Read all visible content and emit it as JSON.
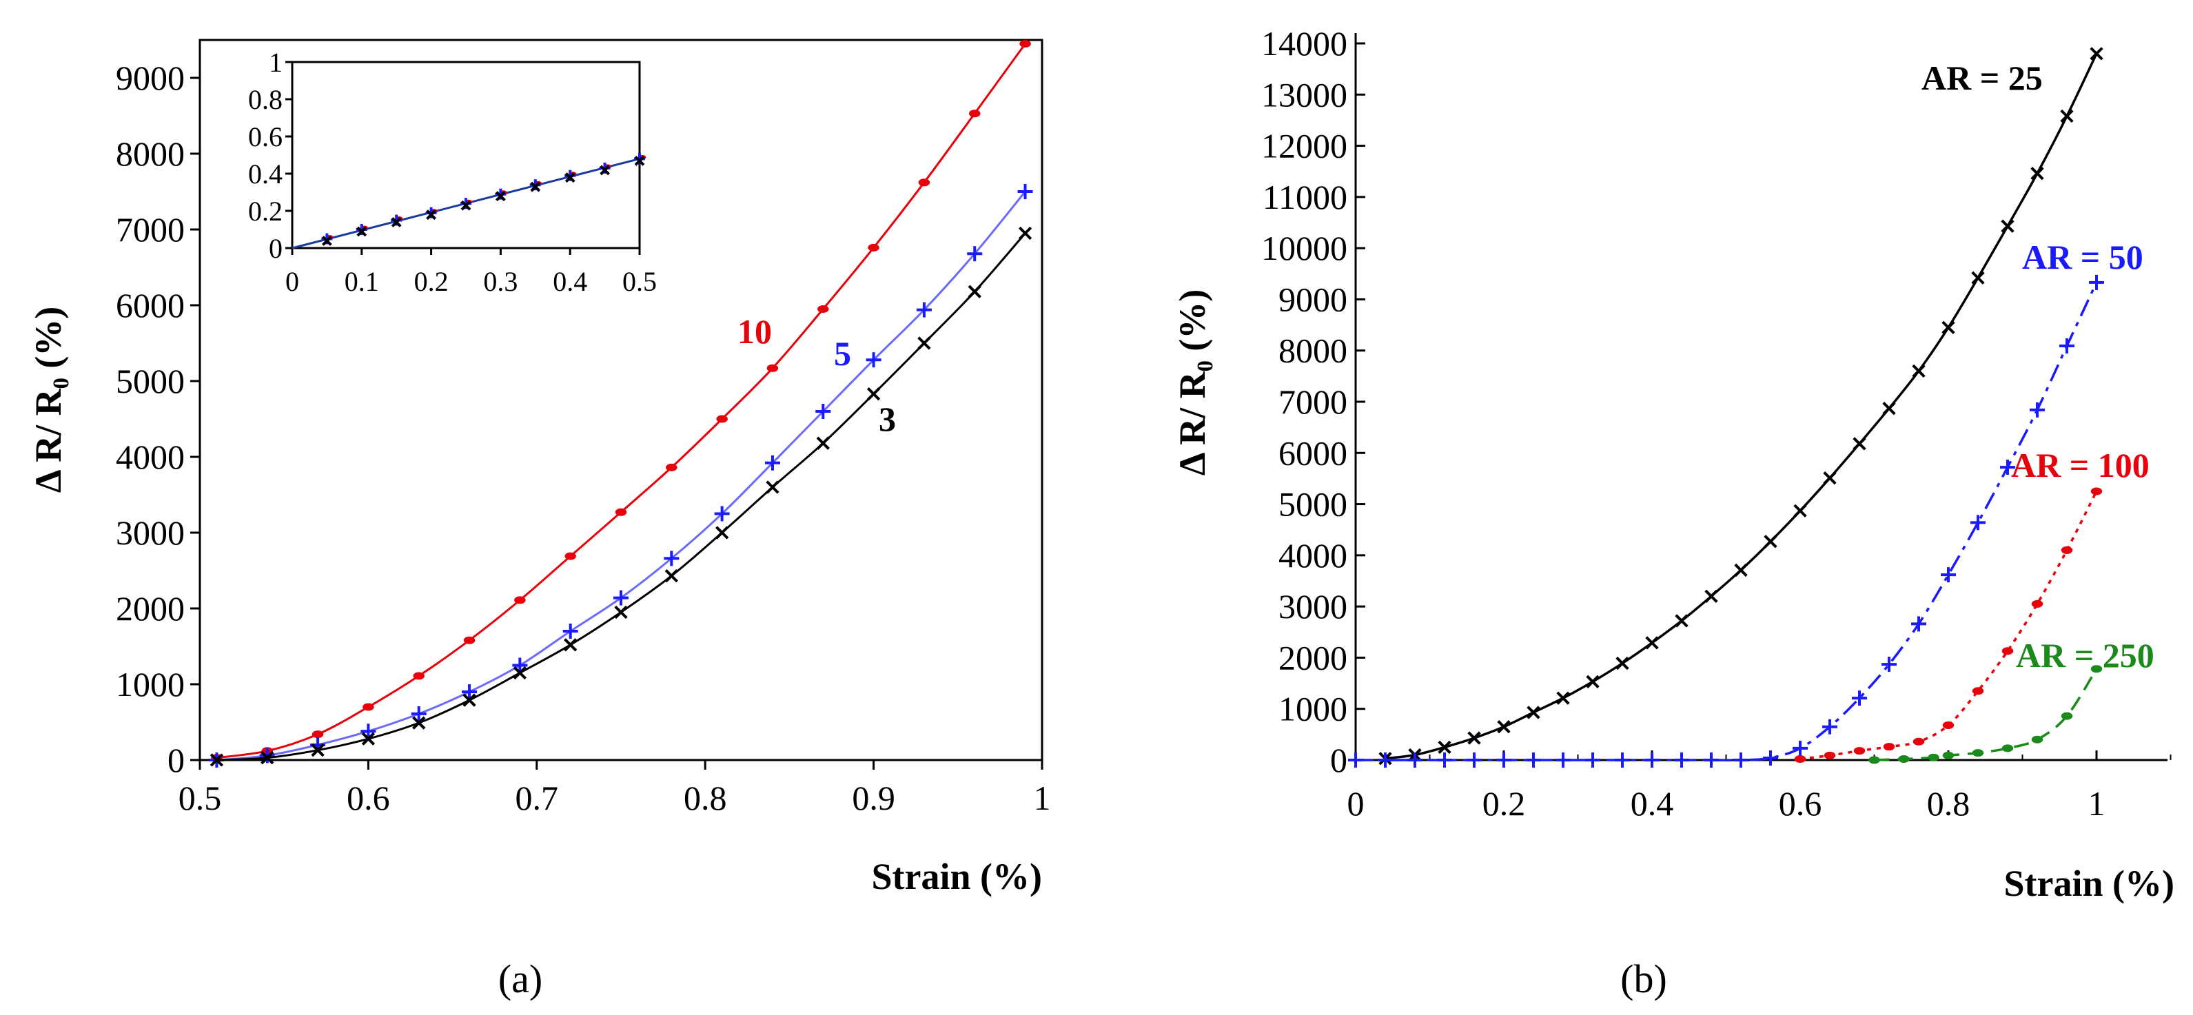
{
  "chart_data": [
    {
      "type": "line",
      "panel": "(a)",
      "xlabel": "Strain (%)",
      "ylabel": "Δ R/ R₀ (%)",
      "xlim": [
        0.5,
        1.0
      ],
      "ylim": [
        0,
        9500
      ],
      "xticks": [
        "0.5",
        "0.6",
        "0.7",
        "0.8",
        "0.9",
        "1"
      ],
      "yticks": [
        "0",
        "1000",
        "2000",
        "3000",
        "4000",
        "5000",
        "6000",
        "7000",
        "8000",
        "9000"
      ],
      "series": [
        {
          "name": "10",
          "color": "#e8000b",
          "marker": "dot",
          "x": [
            0.51,
            0.54,
            0.57,
            0.6,
            0.63,
            0.66,
            0.69,
            0.72,
            0.75,
            0.78,
            0.81,
            0.84,
            0.87,
            0.9,
            0.93,
            0.96,
            0.99
          ],
          "y": [
            30,
            120,
            340,
            700,
            1110,
            1580,
            2110,
            2690,
            3270,
            3860,
            4500,
            5170,
            5950,
            6760,
            7620,
            8530,
            9450
          ]
        },
        {
          "name": "5",
          "color": "#1a1aff",
          "marker": "plus",
          "x": [
            0.51,
            0.54,
            0.57,
            0.6,
            0.63,
            0.66,
            0.69,
            0.72,
            0.75,
            0.78,
            0.81,
            0.84,
            0.87,
            0.9,
            0.93,
            0.96,
            0.99
          ],
          "y": [
            0,
            60,
            200,
            380,
            610,
            900,
            1250,
            1700,
            2140,
            2660,
            3250,
            3920,
            4600,
            5280,
            5940,
            6680,
            7500
          ]
        },
        {
          "name": "3",
          "color": "#000000",
          "marker": "cross",
          "x": [
            0.51,
            0.54,
            0.57,
            0.6,
            0.63,
            0.66,
            0.69,
            0.72,
            0.75,
            0.78,
            0.81,
            0.84,
            0.87,
            0.9,
            0.93,
            0.96,
            0.99
          ],
          "y": [
            0,
            30,
            130,
            280,
            490,
            790,
            1150,
            1520,
            1950,
            2430,
            3000,
            3600,
            4180,
            4830,
            5500,
            6180,
            6950
          ]
        }
      ],
      "inset": {
        "xlim": [
          0,
          0.5
        ],
        "ylim": [
          0,
          1
        ],
        "xticks": [
          "0",
          "0.1",
          "0.2",
          "0.3",
          "0.4",
          "0.5"
        ],
        "yticks": [
          "0",
          "0.2",
          "0.4",
          "0.6",
          "0.8",
          "1"
        ],
        "x": [
          0.05,
          0.1,
          0.15,
          0.2,
          0.25,
          0.3,
          0.35,
          0.4,
          0.45,
          0.5
        ],
        "y": [
          0.05,
          0.1,
          0.15,
          0.19,
          0.24,
          0.29,
          0.34,
          0.39,
          0.43,
          0.48
        ]
      }
    },
    {
      "type": "line",
      "panel": "(b)",
      "xlabel": "Strain (%)",
      "ylabel": "Δ R/ R₀ (%)",
      "xlim": [
        0,
        1.1
      ],
      "ylim": [
        0,
        14000
      ],
      "xticks": [
        "0",
        "0.2",
        "0.4",
        "0.6",
        "0.8",
        "1"
      ],
      "yticks": [
        "0",
        "1000",
        "2000",
        "3000",
        "4000",
        "5000",
        "6000",
        "7000",
        "8000",
        "9000",
        "10000",
        "11000",
        "12000",
        "13000",
        "14000"
      ],
      "series": [
        {
          "name": "AR = 25",
          "color": "#000000",
          "marker": "cross",
          "dash": "solid",
          "x": [
            0.04,
            0.08,
            0.12,
            0.16,
            0.2,
            0.24,
            0.28,
            0.32,
            0.36,
            0.4,
            0.44,
            0.48,
            0.52,
            0.56,
            0.6,
            0.64,
            0.68,
            0.72,
            0.76,
            0.8,
            0.84,
            0.88,
            0.92,
            0.96,
            1.0
          ],
          "y": [
            30,
            100,
            250,
            430,
            650,
            930,
            1210,
            1530,
            1890,
            2290,
            2720,
            3200,
            3710,
            4270,
            4870,
            5510,
            6180,
            6870,
            7600,
            8450,
            9420,
            10430,
            11460,
            12580,
            13800
          ]
        },
        {
          "name": "AR = 50",
          "color": "#1a1aff",
          "marker": "plus",
          "dash": "dashdot",
          "x": [
            0.0,
            0.04,
            0.08,
            0.12,
            0.16,
            0.2,
            0.24,
            0.28,
            0.32,
            0.36,
            0.4,
            0.44,
            0.48,
            0.52,
            0.56,
            0.6,
            0.64,
            0.68,
            0.72,
            0.76,
            0.8,
            0.84,
            0.88,
            0.92,
            0.96,
            1.0
          ],
          "y": [
            0,
            0,
            0,
            0,
            0,
            0,
            0,
            0,
            0,
            0,
            0,
            0,
            0,
            0,
            40,
            230,
            650,
            1210,
            1870,
            2660,
            3620,
            4640,
            5720,
            6840,
            8090,
            9330
          ]
        },
        {
          "name": "AR = 100",
          "color": "#e8000b",
          "marker": "dot",
          "dash": "dotted",
          "x": [
            0.6,
            0.64,
            0.68,
            0.72,
            0.76,
            0.8,
            0.84,
            0.88,
            0.92,
            0.96,
            1.0
          ],
          "y": [
            20,
            90,
            180,
            260,
            360,
            680,
            1350,
            2130,
            3050,
            4100,
            5250
          ]
        },
        {
          "name": "AR = 250",
          "color": "#1a8a1a",
          "marker": "dot",
          "dash": "dashed",
          "x": [
            0.7,
            0.74,
            0.78,
            0.8,
            0.84,
            0.88,
            0.92,
            0.96,
            1.0
          ],
          "y": [
            0,
            20,
            50,
            90,
            140,
            230,
            400,
            860,
            1780
          ]
        }
      ]
    }
  ],
  "labels": {
    "panel_a": "(a)",
    "panel_b": "(b)"
  }
}
